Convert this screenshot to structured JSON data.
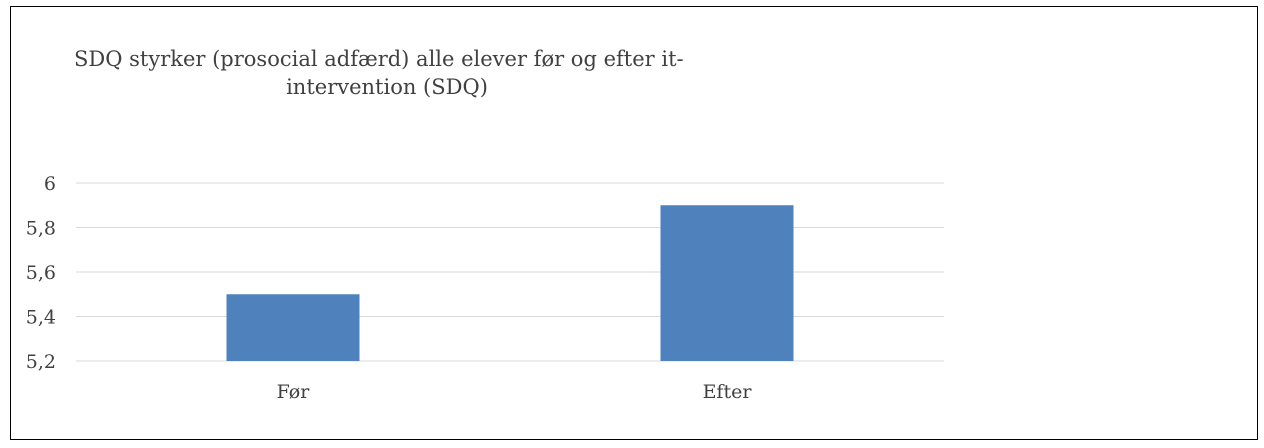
{
  "chart_data": {
    "type": "bar",
    "title_lines": [
      "SDQ styrker (prosocial adfærd) alle elever før og efter it-",
      "intervention (SDQ)"
    ],
    "categories": [
      "Før",
      "Efter"
    ],
    "values": [
      5.5,
      5.9
    ],
    "ylim": [
      5.2,
      6
    ],
    "yticks": [
      "5,2",
      "5,4",
      "5,6",
      "5,8",
      "6"
    ],
    "ytick_values": [
      5.2,
      5.4,
      5.6,
      5.8,
      6.0
    ],
    "grid": true,
    "legend": "none",
    "bar_color": "#4f81bd",
    "grid_color": "#d9d9d9"
  }
}
